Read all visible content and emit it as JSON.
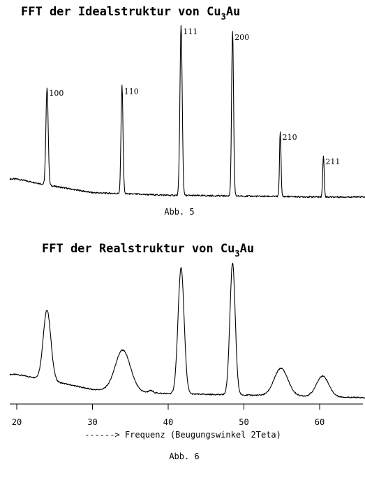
{
  "figure": {
    "caption_top": "Abb. 5",
    "caption_bottom": "Abb. 6"
  },
  "chart_data": [
    {
      "type": "line",
      "title": {
        "prefix": "FFT der Idealstruktur von Cu",
        "subscript": "3",
        "suffix": "Au"
      },
      "xlabel": "",
      "ylabel": "",
      "xlim": [
        19,
        66
      ],
      "ylim": [
        0,
        100
      ],
      "baseline": {
        "x": [
          20,
          24,
          30,
          40,
          50,
          60,
          66
        ],
        "y": [
          11,
          7.5,
          3,
          1.5,
          1,
          0.5,
          0.5
        ]
      },
      "peaks": [
        {
          "label": "100",
          "x": 24.0,
          "height": 57,
          "width": 0.15
        },
        {
          "label": "110",
          "x": 33.9,
          "height": 63,
          "width": 0.13
        },
        {
          "label": "111",
          "x": 41.7,
          "height": 99,
          "width": 0.15
        },
        {
          "label": "200",
          "x": 48.5,
          "height": 96,
          "width": 0.13
        },
        {
          "label": "210",
          "x": 54.8,
          "height": 38,
          "width": 0.1
        },
        {
          "label": "211",
          "x": 60.5,
          "height": 24,
          "width": 0.1
        }
      ],
      "grid": false
    },
    {
      "type": "line",
      "title": {
        "prefix": "FFT der Realstruktur von Cu",
        "subscript": "3",
        "suffix": "Au"
      },
      "xlabel": "------> Frequenz (Beugungswinkel 2Teta)",
      "ylabel": "",
      "xlim": [
        19,
        66
      ],
      "ylim": [
        0,
        100
      ],
      "xticks": [
        20,
        30,
        40,
        50,
        60
      ],
      "baseline": {
        "x": [
          20,
          24,
          30,
          40,
          50,
          60,
          66
        ],
        "y": [
          18,
          14,
          7,
          4,
          3,
          2,
          1
        ]
      },
      "peaks": [
        {
          "x": 24.0,
          "height": 51,
          "width": 0.5
        },
        {
          "x": 34.0,
          "height": 30,
          "width": 1.0
        },
        {
          "x": 37.7,
          "height": 1.5,
          "width": 0.3
        },
        {
          "x": 41.7,
          "height": 92,
          "width": 0.4
        },
        {
          "x": 48.5,
          "height": 96,
          "width": 0.35
        },
        {
          "x": 54.9,
          "height": 20,
          "width": 0.9
        },
        {
          "x": 60.4,
          "height": 15,
          "width": 0.8
        }
      ],
      "grid": false
    }
  ]
}
